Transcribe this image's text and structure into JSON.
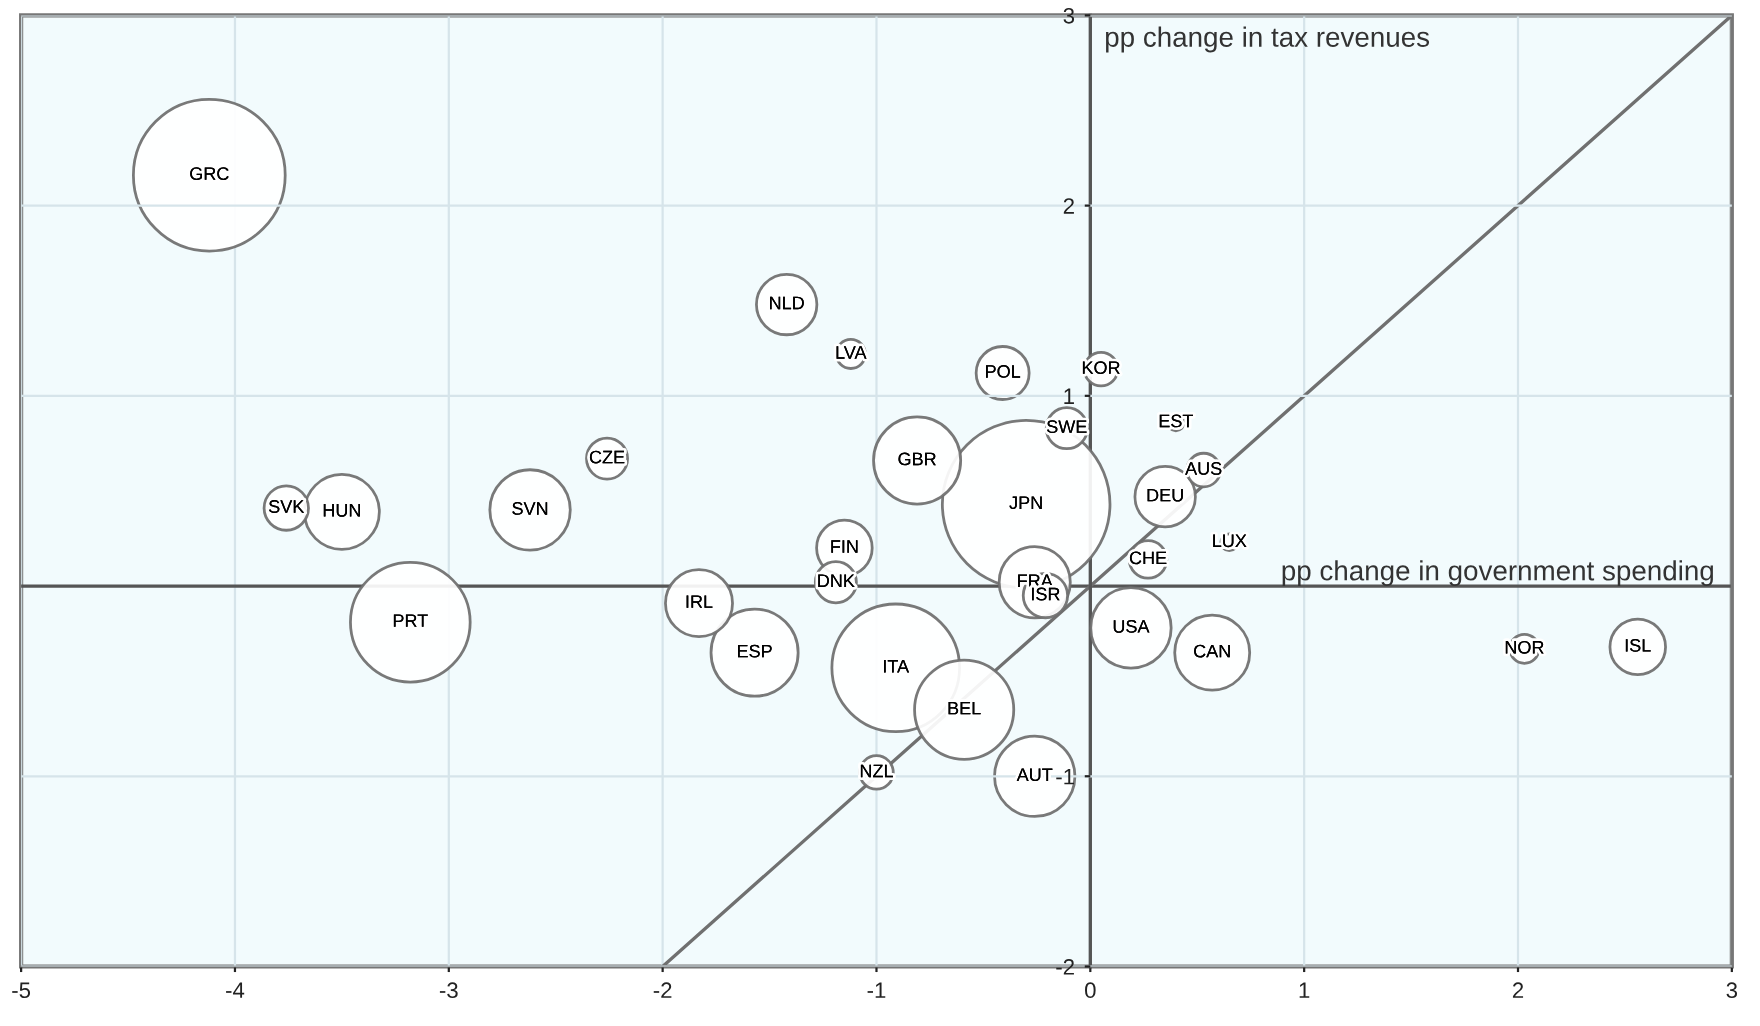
{
  "chart_data": {
    "type": "bubble",
    "xlabel": "pp change in government spending",
    "ylabel": "pp change in tax revenues",
    "xlim": [
      -5,
      3
    ],
    "xticks": [
      -5,
      -4,
      -3,
      -2,
      -1,
      0,
      1,
      2,
      3
    ],
    "ylim": [
      -2,
      3
    ],
    "yticks": [
      -2,
      -1,
      1,
      2,
      3
    ],
    "grid": true,
    "legend": false,
    "ref_lines": [
      {
        "axis": "y",
        "value": 0,
        "color": "#555555"
      }
    ],
    "series": [
      {
        "type": "bubble",
        "color": "#ffffff",
        "x": [
          -4.12,
          -1.42,
          -1.12,
          -0.41,
          0.05,
          -0.11,
          0.4,
          -0.81,
          -0.3,
          0.35,
          0.53,
          0.65,
          0.27,
          -0.26,
          -0.21,
          -2.26,
          -3.76,
          -3.5,
          -2.62,
          -3.18,
          -1.15,
          -1.19,
          -1.83,
          -1.57,
          -0.91,
          -0.59,
          -1.0,
          -0.26,
          0.19,
          0.57,
          2.03,
          2.56
        ],
        "values": [
          2.16,
          1.48,
          1.22,
          1.12,
          1.14,
          0.83,
          0.86,
          0.66,
          0.43,
          0.47,
          0.61,
          0.23,
          0.14,
          0.02,
          -0.05,
          0.67,
          0.41,
          0.39,
          0.4,
          -0.19,
          0.2,
          0.02,
          -0.09,
          -0.35,
          -0.43,
          -0.65,
          -0.98,
          -1.0,
          -0.22,
          -0.35,
          -0.33,
          -0.32
        ],
        "sizes": [
          0.82,
          0.13,
          0.03,
          0.1,
          0.04,
          0.06,
          0.01,
          0.27,
          1,
          0.13,
          0.04,
          0.01,
          0.05,
          0.18,
          0.07,
          0.06,
          0.07,
          0.2,
          0.23,
          0.51,
          0.11,
          0.06,
          0.16,
          0.27,
          0.58,
          0.35,
          0.04,
          0.23,
          0.23,
          0.2,
          0.03,
          0.11
        ]
      },
      {
        "type": "line",
        "color": "#707070",
        "x": [
          -2,
          3
        ],
        "values": [
          -2,
          3
        ]
      }
    ],
    "annotations": [
      {
        "text": "GRC",
        "x": -4.12,
        "y": 2.16
      },
      {
        "text": "NLD",
        "x": -1.42,
        "y": 1.48
      },
      {
        "text": "LVA",
        "x": -1.12,
        "y": 1.22
      },
      {
        "text": "POL",
        "x": -0.41,
        "y": 1.12
      },
      {
        "text": "KOR",
        "x": 0.05,
        "y": 1.14
      },
      {
        "text": "SWE",
        "x": -0.11,
        "y": 0.83
      },
      {
        "text": "EST",
        "x": 0.4,
        "y": 0.86
      },
      {
        "text": "GBR",
        "x": -0.81,
        "y": 0.66
      },
      {
        "text": "JPN",
        "x": -0.3,
        "y": 0.43
      },
      {
        "text": "DEU",
        "x": 0.35,
        "y": 0.47
      },
      {
        "text": "AUS",
        "x": 0.53,
        "y": 0.61
      },
      {
        "text": "LUX",
        "x": 0.65,
        "y": 0.23
      },
      {
        "text": "CHE",
        "x": 0.27,
        "y": 0.14
      },
      {
        "text": "FRA",
        "x": -0.26,
        "y": 0.02
      },
      {
        "text": "ISR",
        "x": -0.21,
        "y": -0.05
      },
      {
        "text": "CZE",
        "x": -2.26,
        "y": 0.67
      },
      {
        "text": "SVK",
        "x": -3.76,
        "y": 0.41
      },
      {
        "text": "HUN",
        "x": -3.5,
        "y": 0.39
      },
      {
        "text": "SVN",
        "x": -2.62,
        "y": 0.4
      },
      {
        "text": "PRT",
        "x": -3.18,
        "y": -0.19
      },
      {
        "text": "FIN",
        "x": -1.15,
        "y": 0.2
      },
      {
        "text": "DNK",
        "x": -1.19,
        "y": 0.02
      },
      {
        "text": "IRL",
        "x": -1.83,
        "y": -0.09
      },
      {
        "text": "ESP",
        "x": -1.57,
        "y": -0.35
      },
      {
        "text": "ITA",
        "x": -0.91,
        "y": -0.43
      },
      {
        "text": "BEL",
        "x": -0.59,
        "y": -0.65
      },
      {
        "text": "NZL",
        "x": -1.0,
        "y": -0.98
      },
      {
        "text": "AUT",
        "x": -0.26,
        "y": -1.0
      },
      {
        "text": "USA",
        "x": 0.19,
        "y": -0.22
      },
      {
        "text": "CAN",
        "x": 0.57,
        "y": -0.35
      },
      {
        "text": "NOR",
        "x": 2.03,
        "y": -0.33
      },
      {
        "text": "ISL",
        "x": 2.56,
        "y": -0.32
      }
    ]
  }
}
